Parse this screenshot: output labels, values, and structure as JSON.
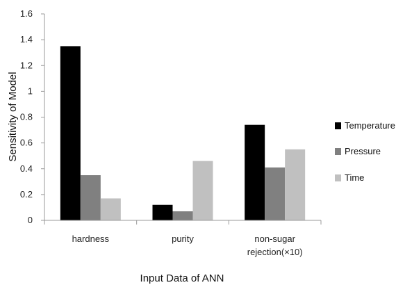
{
  "chart_data": {
    "type": "bar",
    "categories": [
      "hardness",
      "purity",
      "non-sugar rejection(×10)"
    ],
    "category_lines": [
      [
        "hardness"
      ],
      [
        "purity"
      ],
      [
        "non-sugar",
        "rejection(×10)"
      ]
    ],
    "series": [
      {
        "name": "Temperature",
        "values": [
          1.35,
          0.12,
          0.74
        ],
        "color": "#000000"
      },
      {
        "name": "Pressure",
        "values": [
          0.35,
          0.07,
          0.41
        ],
        "color": "#808080"
      },
      {
        "name": "Time",
        "values": [
          0.17,
          0.46,
          0.55
        ],
        "color": "#c0c0c0"
      }
    ],
    "title": "",
    "xlabel": "Input Data of ANN",
    "ylabel": "Sensitivity of Model",
    "ylim": [
      0,
      1.6
    ],
    "yticks": [
      0,
      0.2,
      0.4,
      0.6,
      0.8,
      1,
      1.2,
      1.4,
      1.6
    ],
    "ytick_labels": [
      "0",
      "0.2",
      "0.4",
      "0.6",
      "0.8",
      "1",
      "1.2",
      "1.4",
      "1.6"
    ],
    "grid": false,
    "legend_position": "right"
  }
}
